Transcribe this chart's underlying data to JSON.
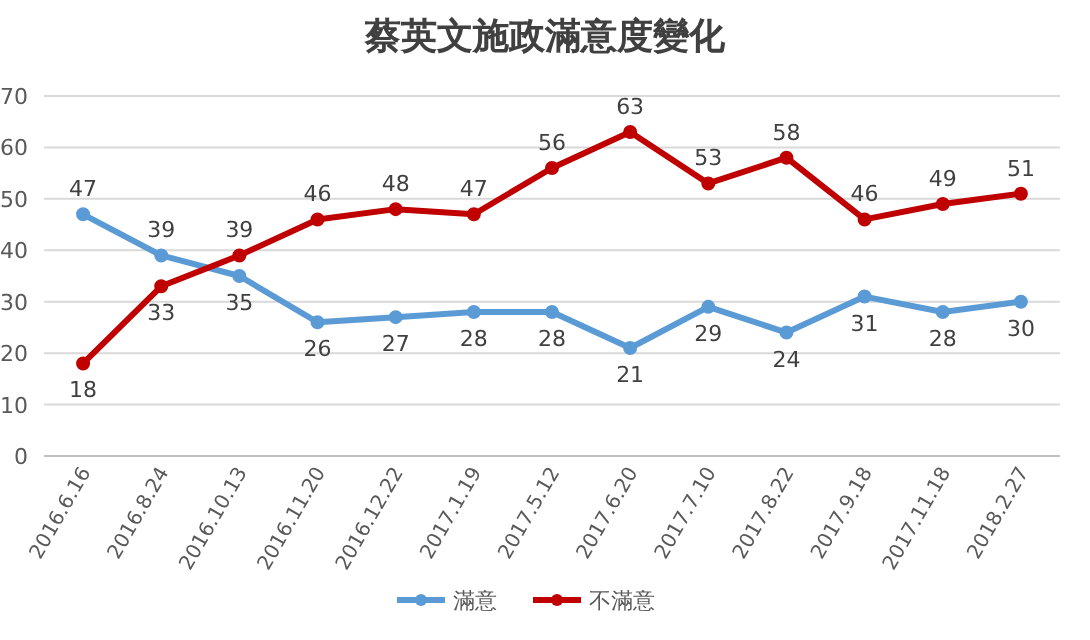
{
  "chart_data": {
    "type": "line",
    "title": "蔡英文施政滿意度變化",
    "categories": [
      "2016.6.16",
      "2016.8.24",
      "2016.10.13",
      "2016.11.20",
      "2016.12.22",
      "2017.1.19",
      "2017.5.12",
      "2017.6.20",
      "2017.7.10",
      "2017.8.22",
      "2017.9.18",
      "2017.11.18",
      "2018.2.27"
    ],
    "series": [
      {
        "name": "滿意",
        "color": "#5b9bd5",
        "values": [
          47,
          39,
          35,
          26,
          27,
          28,
          28,
          21,
          29,
          24,
          31,
          28,
          30
        ]
      },
      {
        "name": "不滿意",
        "color": "#c00000",
        "values": [
          18,
          33,
          39,
          46,
          48,
          47,
          56,
          63,
          53,
          58,
          46,
          49,
          51
        ]
      }
    ],
    "ylim": [
      0,
      70
    ],
    "yticks": [
      0,
      10,
      20,
      30,
      40,
      50,
      60,
      70
    ],
    "grid": "y",
    "legend": "bottom",
    "marker": "circle",
    "line_style": "solid",
    "data_labels": true
  }
}
